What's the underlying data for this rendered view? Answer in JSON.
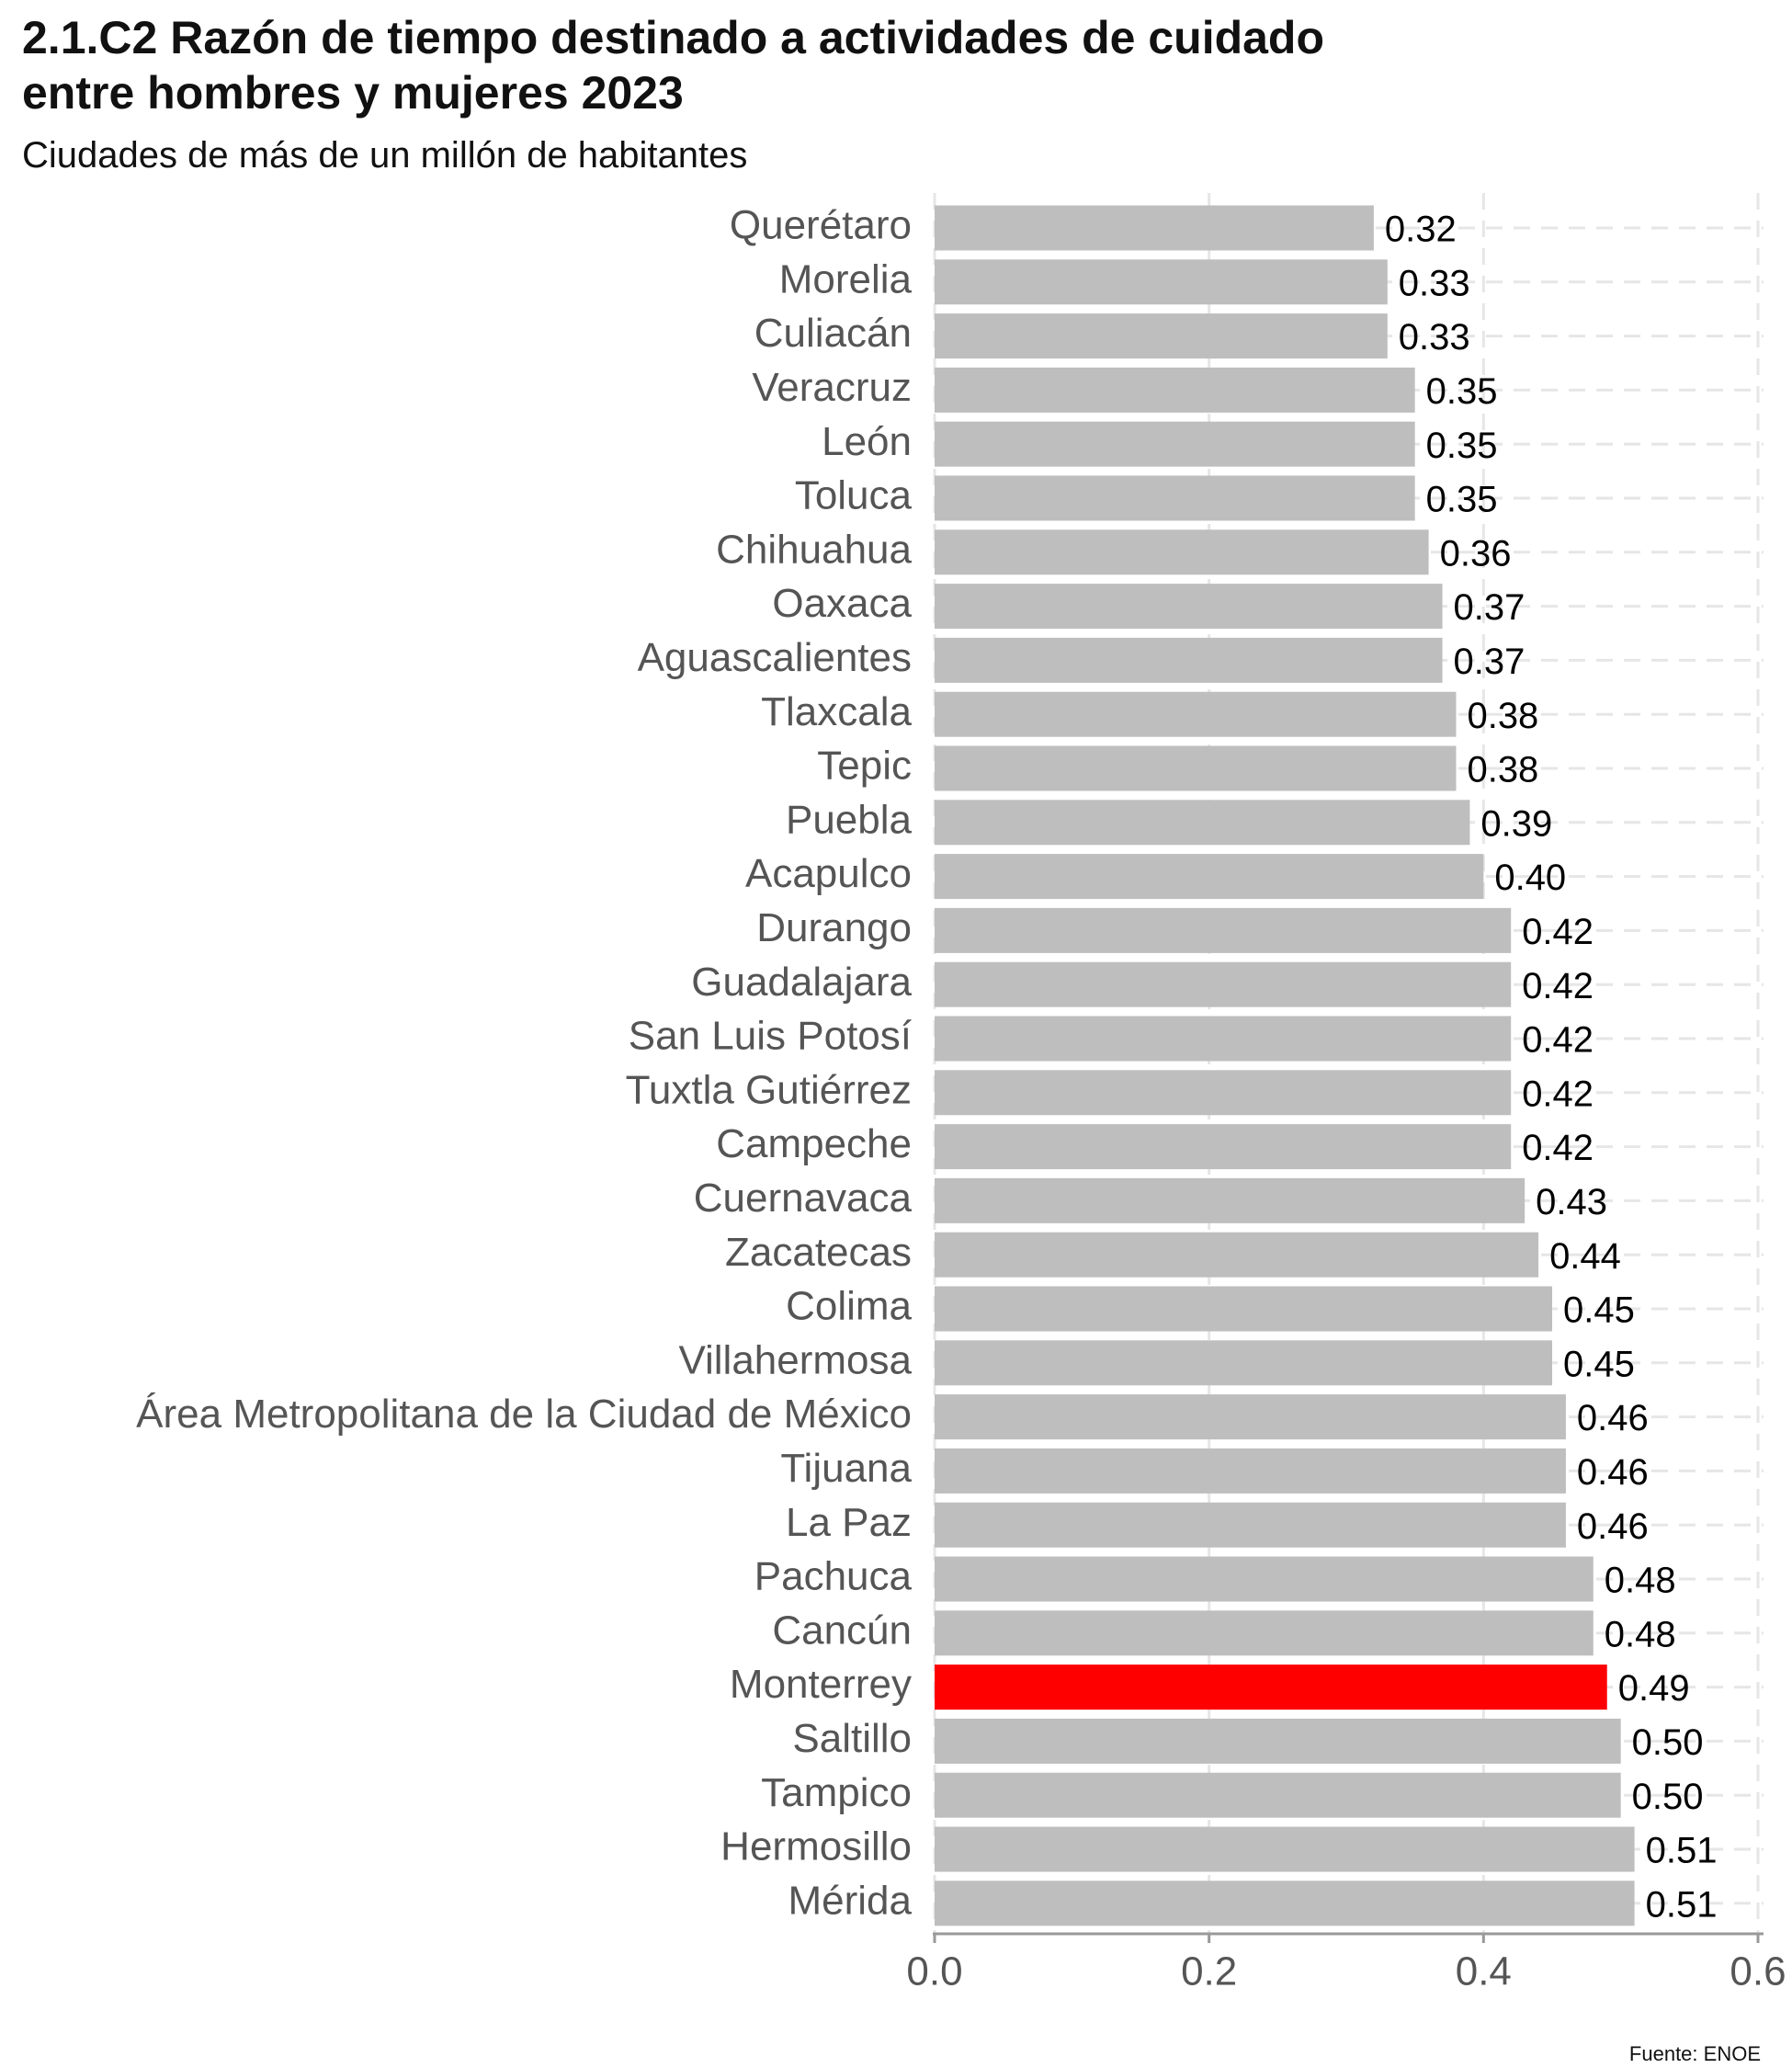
{
  "chart_data": {
    "type": "barh",
    "title": [
      "2.1.C2 Razón de tiempo destinado a actividades de cuidado",
      "entre hombres y mujeres 2023"
    ],
    "subtitle": "Ciudades de más de un millón de habitantes",
    "source": "Fuente: ENOE",
    "categories": [
      "Querétaro",
      "Morelia",
      "Culiacán",
      "Veracruz",
      "León",
      "Toluca",
      "Chihuahua",
      "Oaxaca",
      "Aguascalientes",
      "Tlaxcala",
      "Tepic",
      "Puebla",
      "Acapulco",
      "Durango",
      "Guadalajara",
      "San Luis Potosí",
      "Tuxtla Gutiérrez",
      "Campeche",
      "Cuernavaca",
      "Zacatecas",
      "Colima",
      "Villahermosa",
      "Área Metropolitana de la Ciudad de México",
      "Tijuana",
      "La Paz",
      "Pachuca",
      "Cancún",
      "Monterrey",
      "Saltillo",
      "Tampico",
      "Hermosillo",
      "Mérida"
    ],
    "values": [
      0.32,
      0.33,
      0.33,
      0.35,
      0.35,
      0.35,
      0.36,
      0.37,
      0.37,
      0.38,
      0.38,
      0.39,
      0.4,
      0.42,
      0.42,
      0.42,
      0.42,
      0.42,
      0.43,
      0.44,
      0.45,
      0.45,
      0.46,
      0.46,
      0.46,
      0.48,
      0.48,
      0.49,
      0.5,
      0.5,
      0.51,
      0.51
    ],
    "value_labels": [
      "0.32",
      "0.33",
      "0.33",
      "0.35",
      "0.35",
      "0.35",
      "0.36",
      "0.37",
      "0.37",
      "0.38",
      "0.38",
      "0.39",
      "0.40",
      "0.42",
      "0.42",
      "0.42",
      "0.42",
      "0.42",
      "0.43",
      "0.44",
      "0.45",
      "0.45",
      "0.46",
      "0.46",
      "0.46",
      "0.48",
      "0.48",
      "0.49",
      "0.50",
      "0.50",
      "0.51",
      "0.51"
    ],
    "colors": [
      "#bebebe",
      "#bebebe",
      "#bebebe",
      "#bebebe",
      "#bebebe",
      "#bebebe",
      "#bebebe",
      "#bebebe",
      "#bebebe",
      "#bebebe",
      "#bebebe",
      "#bebebe",
      "#bebebe",
      "#bebebe",
      "#bebebe",
      "#bebebe",
      "#bebebe",
      "#bebebe",
      "#bebebe",
      "#bebebe",
      "#bebebe",
      "#bebebe",
      "#bebebe",
      "#bebebe",
      "#bebebe",
      "#bebebe",
      "#bebebe",
      "#ff0000",
      "#bebebe",
      "#bebebe",
      "#bebebe",
      "#bebebe"
    ],
    "xlim": [
      0,
      0.6
    ],
    "xticks": [
      {
        "value": 0,
        "label": "0.0"
      },
      {
        "value": 0.2,
        "label": "0.2"
      },
      {
        "value": 0.4,
        "label": "0.4"
      },
      {
        "value": 0.6,
        "label": "0.6"
      }
    ],
    "grid": true
  }
}
